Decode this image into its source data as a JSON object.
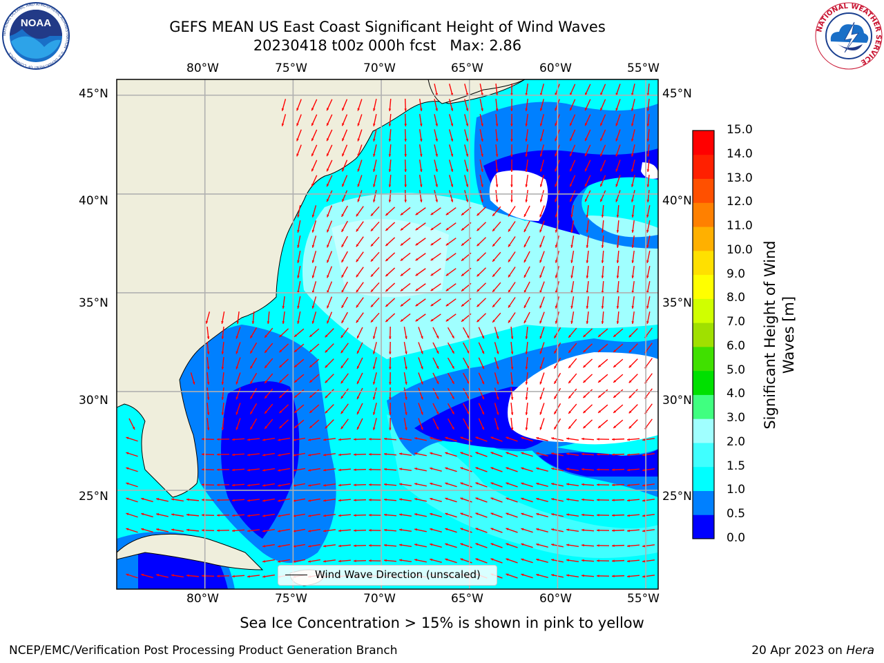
{
  "header": {
    "title_line1": "GEFS MEAN US East Coast Significant Height of Wind Waves",
    "title_line2": "20230418 t00z 000h fcst   Max: 2.86"
  },
  "logos": {
    "left": "noaa-logo-icon",
    "right": "national-weather-service-logo-icon",
    "left_text": "NOAA",
    "left_ring_text": "NATIONAL OCEANIC AND ATMOSPHERIC ADMINISTRATION · U.S. DEPARTMENT OF COMMERCE",
    "right_ring_text": "NATIONAL WEATHER SERVICE"
  },
  "map": {
    "lon_labels": [
      "80°W",
      "75°W",
      "70°W",
      "65°W",
      "60°W",
      "55°W"
    ],
    "lat_labels": [
      "45°N",
      "40°N",
      "35°N",
      "30°N",
      "25°N"
    ],
    "lon_range": [
      -85,
      -54.3
    ],
    "lat_range": [
      20,
      45.8
    ],
    "gridlines": true,
    "colors": {
      "land": "#efeedc",
      "arrow": "#ff0000",
      "grid": "#b0b0b0"
    }
  },
  "legend": {
    "label": "Wind Wave Direction (unscaled)"
  },
  "colorbar": {
    "label": "Significant Height of Wind Waves [m]",
    "ticks": [
      "0.0",
      "0.5",
      "1.0",
      "1.5",
      "2.0",
      "3.0",
      "4.0",
      "5.0",
      "6.0",
      "7.0",
      "8.0",
      "9.0",
      "10.0",
      "11.0",
      "12.0",
      "13.0",
      "14.0",
      "15.0"
    ],
    "colors": [
      "#0000ff",
      "#0080ff",
      "#00ffff",
      "#40ffff",
      "#a0ffff",
      "#40ff80",
      "#00e000",
      "#40e000",
      "#a0e000",
      "#d0ff00",
      "#ffff00",
      "#ffe000",
      "#ffb000",
      "#ff8000",
      "#ff5000",
      "#ff2000",
      "#ff0000"
    ]
  },
  "chart_data": {
    "type": "heatmap",
    "title": "GEFS MEAN US East Coast Significant Height of Wind Waves",
    "subtitle": "20230418 t00z 000h fcst   Max: 2.86",
    "xlabel": "",
    "ylabel": "",
    "x_ticks": [
      "80°W",
      "75°W",
      "70°W",
      "65°W",
      "60°W",
      "55°W"
    ],
    "y_ticks": [
      "45°N",
      "40°N",
      "35°N",
      "30°N",
      "25°N"
    ],
    "value_max": 2.86,
    "colorbar_range": [
      0.0,
      15.0
    ],
    "series": [
      {
        "name": "Significant Height of Wind Waves [m]"
      },
      {
        "name": "Wind Wave Direction (unscaled)"
      }
    ]
  },
  "notes": {
    "sea_ice": "Sea Ice Concentration > 15% is shown in pink to yellow"
  },
  "footer": {
    "left": "NCEP/EMC/Verification Post Processing Product Generation Branch",
    "date": "20 Apr 2023 on",
    "machine": "Hera"
  }
}
